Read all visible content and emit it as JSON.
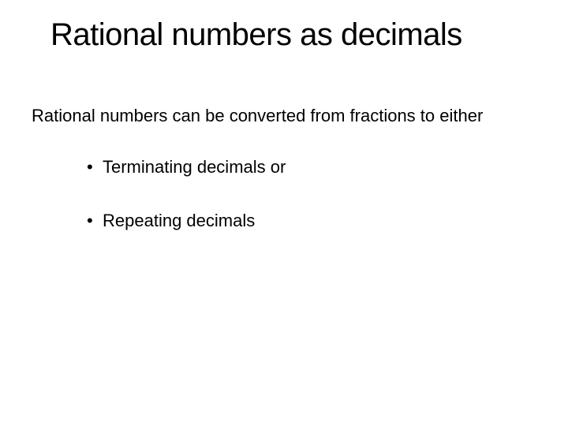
{
  "slide": {
    "title": "Rational numbers as decimals",
    "intro": "Rational numbers can be converted from fractions to either",
    "bullets": [
      "Terminating decimals or",
      "Repeating decimals"
    ]
  },
  "style": {
    "background_color": "#ffffff",
    "text_color": "#000000",
    "title_fontsize": 40,
    "body_fontsize": 22,
    "font_family": "Arial"
  }
}
